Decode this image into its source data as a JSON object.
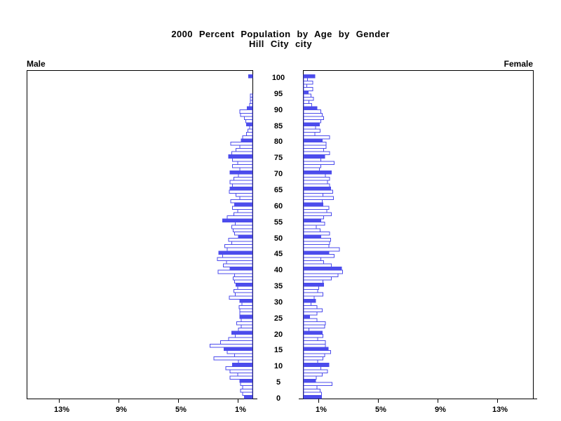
{
  "chart_data": {
    "type": "bar",
    "variant": "population_pyramid",
    "title": "2000 Percent Population by Age by Gender",
    "subtitle": "Hill City city",
    "left_series_label": "Male",
    "right_series_label": "Female",
    "age_min": 0,
    "age_max": 100,
    "age_tick_step": 5,
    "age_tick_labels": [
      "0",
      "5",
      "10",
      "15",
      "20",
      "25",
      "30",
      "35",
      "40",
      "45",
      "50",
      "55",
      "60",
      "65",
      "70",
      "75",
      "80",
      "85",
      "90",
      "95",
      "100"
    ],
    "x_axis_unit": "percent",
    "x_range_percent": [
      0,
      15.2
    ],
    "male_x_ticks_percent": [
      13,
      9,
      5,
      1
    ],
    "male_x_tick_labels": [
      "13%",
      "9%",
      "5%",
      "1%"
    ],
    "female_x_ticks_percent": [
      1,
      5,
      9,
      13
    ],
    "female_x_tick_labels": [
      "1%",
      "5%",
      "9%",
      "13%"
    ],
    "highlight_every_n_years": 5,
    "series": [
      {
        "name": "Male",
        "orientation": "left",
        "values_percent_by_age": [
          0.55,
          0.65,
          0.8,
          0.65,
          0.8,
          0.85,
          1.5,
          1.0,
          1.5,
          1.8,
          1.35,
          0.95,
          2.6,
          1.2,
          1.7,
          1.9,
          2.85,
          2.15,
          1.6,
          1.15,
          1.4,
          0.95,
          0.75,
          1.05,
          0.75,
          0.85,
          0.85,
          0.85,
          0.9,
          0.7,
          0.85,
          1.55,
          1.15,
          1.25,
          1.0,
          1.1,
          1.2,
          1.3,
          1.2,
          2.3,
          1.5,
          1.95,
          1.75,
          2.35,
          2.0,
          2.25,
          1.7,
          1.85,
          1.4,
          1.6,
          0.95,
          1.2,
          1.3,
          1.4,
          1.15,
          2.0,
          1.7,
          1.25,
          1.0,
          1.35,
          1.2,
          1.45,
          0.85,
          1.1,
          1.55,
          1.5,
          1.35,
          1.5,
          1.25,
          0.95,
          1.5,
          0.85,
          1.35,
          1.0,
          1.35,
          1.6,
          1.4,
          1.1,
          0.85,
          1.45,
          0.75,
          0.65,
          0.4,
          0.3,
          0.2,
          0.4,
          0.45,
          0.55,
          0.8,
          0.85,
          0.35,
          0.2,
          0.15,
          0.15,
          0.15,
          0,
          0,
          0,
          0,
          0,
          0.25
        ]
      },
      {
        "name": "Female",
        "orientation": "right",
        "values_percent_by_age": [
          1.2,
          1.2,
          1.1,
          0.9,
          1.9,
          0.8,
          0.85,
          1.25,
          1.6,
          1.15,
          1.7,
          0.95,
          1.3,
          1.4,
          1.8,
          1.65,
          1.45,
          1.45,
          0.95,
          1.3,
          1.25,
          0.35,
          1.4,
          1.45,
          0.9,
          0.4,
          0.9,
          1.25,
          0.9,
          0.5,
          0.8,
          0.7,
          1.3,
          0.95,
          1.0,
          1.35,
          1.3,
          1.85,
          2.3,
          2.6,
          2.55,
          1.85,
          1.35,
          1.15,
          2.05,
          1.7,
          2.4,
          1.7,
          1.75,
          1.8,
          1.15,
          1.75,
          1.1,
          0.85,
          1.4,
          1.15,
          1.35,
          1.85,
          1.55,
          1.7,
          1.3,
          1.25,
          2.0,
          1.3,
          1.95,
          1.8,
          1.75,
          1.6,
          1.75,
          1.45,
          1.85,
          1.05,
          1.15,
          2.05,
          1.15,
          1.4,
          1.75,
          1.35,
          1.5,
          1.5,
          1.25,
          1.75,
          0.75,
          1.1,
          0.8,
          1.05,
          1.15,
          1.35,
          1.25,
          1.15,
          0.9,
          0.55,
          0.35,
          0.65,
          0.5,
          0.3,
          0.6,
          0.2,
          0.6,
          0.25,
          0.75
        ]
      }
    ],
    "colors": {
      "bar_outline": "#4c4cec",
      "bar_fill_plain": "#ffffff",
      "bar_fill_highlight": "#4c4cec",
      "axis": "#000000",
      "text": "#000000",
      "background": "#ffffff"
    },
    "legend_position": "none",
    "grid": false
  }
}
